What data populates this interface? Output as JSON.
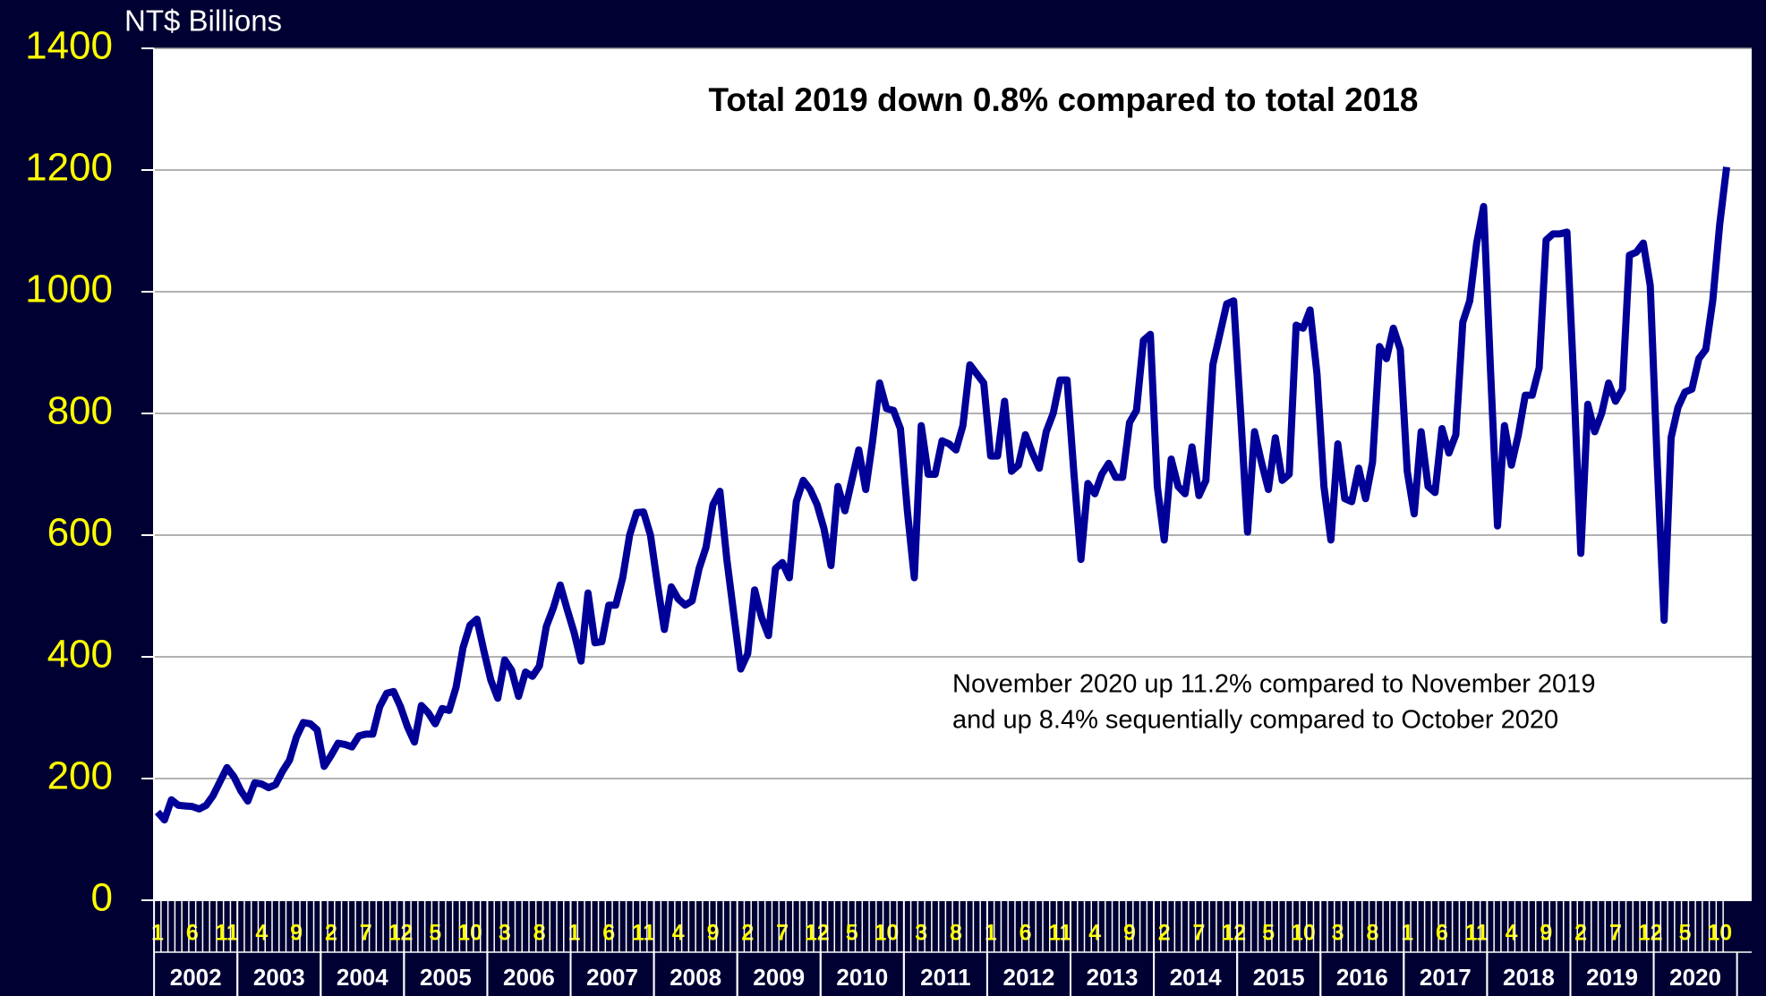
{
  "chart_data": {
    "type": "line",
    "title": "Total 2019 down 0.8% compared to total 2018",
    "y_axis_label": "NT$ Billions",
    "annotations": [
      "November 2020 up 11.2% compared to November 2019",
      "and up 8.4% sequentially compared to October 2020"
    ],
    "ylim": [
      0,
      1400
    ],
    "yticks": [
      0,
      200,
      400,
      600,
      800,
      1000,
      1200,
      1400
    ],
    "grid": true,
    "year_labels": [
      "2002",
      "2003",
      "2004",
      "2005",
      "2006",
      "2007",
      "2008",
      "2009",
      "2010",
      "2011",
      "2012",
      "2013",
      "2014",
      "2015",
      "2016",
      "2017",
      "2018",
      "2019",
      "2020"
    ],
    "categories": [
      "1",
      null,
      null,
      null,
      null,
      "6",
      null,
      null,
      null,
      null,
      "11",
      null,
      null,
      null,
      null,
      "4",
      null,
      null,
      null,
      null,
      "9",
      null,
      null,
      null,
      null,
      "2",
      null,
      null,
      null,
      null,
      "7",
      null,
      null,
      null,
      null,
      "12",
      null,
      null,
      null,
      null,
      "5",
      null,
      null,
      null,
      null,
      "10",
      null,
      null,
      null,
      null,
      "3",
      null,
      null,
      null,
      null,
      "8",
      null,
      null,
      null,
      null,
      "1",
      null,
      null,
      null,
      null,
      "6",
      null,
      null,
      null,
      null,
      "11",
      null,
      null,
      null,
      null,
      "4",
      null,
      null,
      null,
      null,
      "9",
      null,
      null,
      null,
      null,
      "2",
      null,
      null,
      null,
      null,
      "7",
      null,
      null,
      null,
      null,
      "12",
      null,
      null,
      null,
      null,
      "5",
      null,
      null,
      null,
      null,
      "10",
      null,
      null,
      null,
      null,
      "3",
      null,
      null,
      null,
      null,
      "8",
      null,
      null,
      null,
      null,
      "1",
      null,
      null,
      null,
      null,
      "6",
      null,
      null,
      null,
      null,
      "11",
      null,
      null,
      null,
      null,
      "4",
      null,
      null,
      null,
      null,
      "9",
      null,
      null,
      null,
      null,
      "2",
      null,
      null,
      null,
      null,
      "7",
      null,
      null,
      null,
      null,
      "12",
      null,
      null,
      null,
      null,
      "5",
      null,
      null,
      null,
      null,
      "10",
      null,
      null,
      null,
      null,
      "3",
      null,
      null,
      null,
      null,
      "8",
      null,
      null,
      null,
      null,
      "1",
      null,
      null,
      null,
      null,
      "6",
      null,
      null,
      null,
      null,
      "11",
      null,
      null,
      null,
      null,
      "4",
      null,
      null,
      null,
      null,
      "9",
      null,
      null,
      null,
      null,
      "2",
      null,
      null,
      null,
      null,
      "7",
      null,
      null,
      null,
      null,
      "12",
      null,
      null,
      null,
      null,
      "5",
      null,
      null,
      null,
      null,
      "10",
      null
    ],
    "series": [
      {
        "name": "NT$ Billions",
        "color": "#000099",
        "values": [
          145,
          132,
          165,
          156,
          155,
          154,
          150,
          156,
          172,
          195,
          218,
          203,
          180,
          163,
          193,
          191,
          185,
          190,
          212,
          230,
          268,
          292,
          290,
          280,
          220,
          238,
          258,
          256,
          252,
          270,
          273,
          273,
          318,
          340,
          343,
          318,
          285,
          260,
          320,
          308,
          290,
          315,
          312,
          350,
          415,
          452,
          462,
          410,
          362,
          332,
          395,
          378,
          335,
          375,
          368,
          385,
          450,
          480,
          518,
          478,
          440,
          393,
          505,
          423,
          425,
          485,
          485,
          530,
          600,
          637,
          638,
          600,
          520,
          445,
          515,
          495,
          485,
          492,
          545,
          580,
          650,
          672,
          560,
          470,
          380,
          405,
          510,
          465,
          435,
          545,
          555,
          530,
          655,
          690,
          675,
          650,
          610,
          550,
          680,
          640,
          690,
          740,
          675,
          755,
          850,
          808,
          805,
          775,
          640,
          530,
          780,
          700,
          700,
          755,
          750,
          740,
          780,
          880,
          865,
          850,
          730,
          730,
          820,
          705,
          715,
          765,
          735,
          710,
          770,
          800,
          855,
          855,
          700,
          560,
          685,
          668,
          700,
          718,
          695,
          695,
          785,
          805,
          920,
          930,
          680,
          592,
          725,
          680,
          668,
          745,
          665,
          690,
          880,
          930,
          980,
          985,
          800,
          605,
          770,
          720,
          675,
          760,
          690,
          700,
          945,
          940,
          970,
          865,
          680,
          592,
          750,
          660,
          655,
          710,
          660,
          720,
          910,
          890,
          940,
          905,
          705,
          635,
          770,
          680,
          670,
          775,
          735,
          765,
          950,
          985,
          1080,
          1140,
          870,
          615,
          780,
          715,
          765,
          830,
          830,
          875,
          1085,
          1095,
          1095,
          1098,
          850,
          570,
          815,
          770,
          800,
          850,
          820,
          840,
          1060,
          1065,
          1080,
          1010,
          720,
          460,
          760,
          810,
          835,
          840,
          890,
          905,
          985,
          1110,
          1205
        ]
      }
    ]
  }
}
